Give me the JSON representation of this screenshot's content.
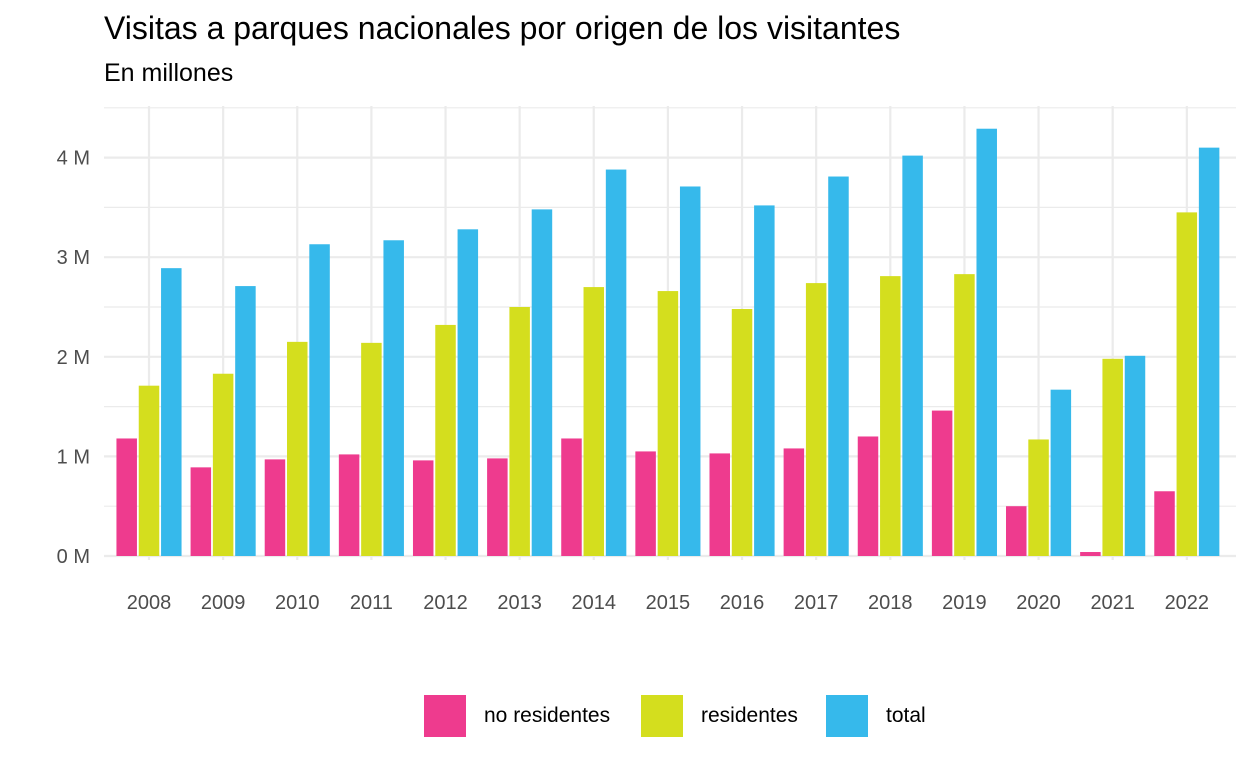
{
  "chart_data": {
    "type": "bar",
    "title": "Visitas a parques nacionales por origen de los visitantes",
    "subtitle": "En millones",
    "xlabel": "",
    "ylabel": "",
    "categories": [
      "2008",
      "2009",
      "2010",
      "2011",
      "2012",
      "2013",
      "2014",
      "2015",
      "2016",
      "2017",
      "2018",
      "2019",
      "2020",
      "2021",
      "2022"
    ],
    "series": [
      {
        "name": "no residentes",
        "color": "#EE3B8E",
        "values": [
          1.18,
          0.89,
          0.97,
          1.02,
          0.96,
          0.98,
          1.18,
          1.05,
          1.03,
          1.08,
          1.2,
          1.46,
          0.5,
          0.04,
          0.65
        ]
      },
      {
        "name": "residentes",
        "color": "#D4DE1E",
        "values": [
          1.71,
          1.83,
          2.15,
          2.14,
          2.32,
          2.5,
          2.7,
          2.66,
          2.48,
          2.74,
          2.81,
          2.83,
          1.17,
          1.98,
          3.45
        ]
      },
      {
        "name": "total",
        "color": "#36B9EB",
        "values": [
          2.89,
          2.71,
          3.13,
          3.17,
          3.28,
          3.48,
          3.88,
          3.71,
          3.52,
          3.81,
          4.02,
          4.29,
          1.67,
          2.01,
          4.1
        ]
      }
    ],
    "ylim": [
      0,
      4.5
    ],
    "yticks": [
      0,
      1,
      2,
      3,
      4
    ],
    "ytick_labels": [
      "0 M",
      "1 M",
      "2 M",
      "3 M",
      "4 M"
    ],
    "grid": true,
    "legend_position": "bottom"
  }
}
